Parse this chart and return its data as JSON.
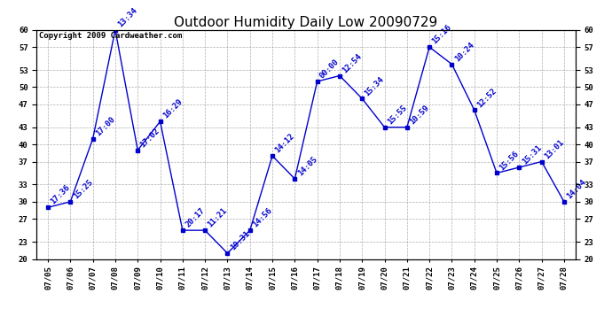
{
  "title": "Outdoor Humidity Daily Low 20090729",
  "copyright": "Copyright 2009 Cardweather.com",
  "x_labels": [
    "07/05",
    "07/06",
    "07/07",
    "07/08",
    "07/09",
    "07/10",
    "07/11",
    "07/12",
    "07/13",
    "07/14",
    "07/15",
    "07/16",
    "07/17",
    "07/18",
    "07/19",
    "07/20",
    "07/21",
    "07/22",
    "07/23",
    "07/24",
    "07/25",
    "07/26",
    "07/27",
    "07/28"
  ],
  "y_values": [
    29,
    30,
    41,
    60,
    39,
    44,
    25,
    25,
    21,
    25,
    38,
    34,
    51,
    52,
    48,
    43,
    43,
    57,
    54,
    46,
    35,
    36,
    37,
    30
  ],
  "point_labels": [
    "17:36",
    "15:25",
    "17:00",
    "13:34",
    "17:02",
    "16:29",
    "20:17",
    "11:21",
    "10:31",
    "14:56",
    "14:12",
    "14:05",
    "00:00",
    "12:54",
    "15:34",
    "15:55",
    "10:59",
    "15:16",
    "10:24",
    "12:52",
    "15:56",
    "15:31",
    "13:01",
    "14:04"
  ],
  "ylim": [
    20,
    60
  ],
  "yticks": [
    20,
    23,
    27,
    30,
    33,
    37,
    40,
    43,
    47,
    50,
    53,
    57,
    60
  ],
  "line_color": "#0000cc",
  "marker_color": "#0000cc",
  "bg_color": "#ffffff",
  "grid_color": "#999999",
  "title_fontsize": 11,
  "label_fontsize": 6.5,
  "annot_fontsize": 6.5,
  "copyright_fontsize": 6.5
}
